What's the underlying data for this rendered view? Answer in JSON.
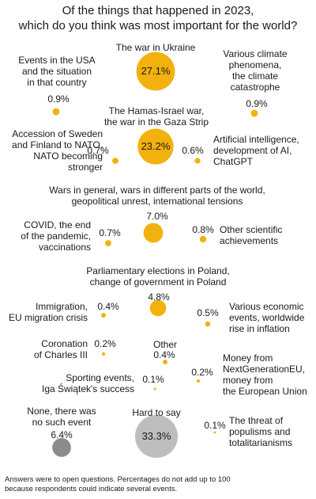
{
  "chart_data": {
    "type": "bubble",
    "title_lines": [
      "Of the things that happened in 2023,",
      "which do you think was most important for the world?"
    ],
    "unit": "%",
    "items": [
      {
        "id": "war-ukraine",
        "label_lines": [
          "The war in Ukraine"
        ],
        "value": 27.1,
        "value_text": "27.1%",
        "color": "#F2B10C",
        "align": "center"
      },
      {
        "id": "events-usa",
        "label_lines": [
          "Events in the USA",
          "and the situation",
          "in that country"
        ],
        "value": 0.9,
        "value_text": "0.9%",
        "color": "#F2B10C",
        "align": "center"
      },
      {
        "id": "climate",
        "label_lines": [
          "Various climate",
          "phenomena,",
          "the climate",
          "catastrophe"
        ],
        "value": 0.9,
        "value_text": "0.9%",
        "color": "#F2B10C",
        "align": "center"
      },
      {
        "id": "hamas-israel",
        "label_lines": [
          "The Hamas-Israel war,",
          "the war in the Gaza Strip"
        ],
        "value": 23.2,
        "value_text": "23.2%",
        "color": "#F2B10C",
        "align": "center"
      },
      {
        "id": "nato",
        "label_lines": [
          "Accession of Sweden",
          "and Finland to NATO,",
          "NATO becoming",
          "stronger"
        ],
        "value": 0.7,
        "value_text": "0.7%",
        "color": "#F2B10C",
        "align": "right"
      },
      {
        "id": "ai",
        "label_lines": [
          "Artificial intelligence,",
          "development of AI,",
          "ChatGPT"
        ],
        "value": 0.6,
        "value_text": "0.6%",
        "color": "#F2B10C",
        "align": "left"
      },
      {
        "id": "wars-general",
        "label_lines": [
          "Wars in general, wars in different parts of the world,",
          "geopolitical unrest, international tensions"
        ],
        "value": 7.0,
        "value_text": "7.0%",
        "color": "#F2B10C",
        "align": "center"
      },
      {
        "id": "covid",
        "label_lines": [
          "COVID, the end",
          "of the pandemic,",
          "vaccinations"
        ],
        "value": 0.7,
        "value_text": "0.7%",
        "color": "#F2B10C",
        "align": "right"
      },
      {
        "id": "scientific",
        "label_lines": [
          "Other scientific",
          "achievements"
        ],
        "value": 0.8,
        "value_text": "0.8%",
        "color": "#F2B10C",
        "align": "left"
      },
      {
        "id": "elections-poland",
        "label_lines": [
          "Parliamentary elections in Poland,",
          "change of government in Poland"
        ],
        "value": 4.8,
        "value_text": "4.8%",
        "color": "#F2B10C",
        "align": "center"
      },
      {
        "id": "immigration",
        "label_lines": [
          "Immigration,",
          "EU migration crisis"
        ],
        "value": 0.4,
        "value_text": "0.4%",
        "color": "#F2B10C",
        "align": "right"
      },
      {
        "id": "economic",
        "label_lines": [
          "Various economic",
          "events, worldwide",
          "rise in inflation"
        ],
        "value": 0.5,
        "value_text": "0.5%",
        "color": "#F2B10C",
        "align": "left"
      },
      {
        "id": "coronation",
        "label_lines": [
          "Coronation",
          "of Charles III"
        ],
        "value": 0.2,
        "value_text": "0.2%",
        "color": "#F2B10C",
        "align": "right"
      },
      {
        "id": "other",
        "label_lines": [
          "Other"
        ],
        "value": 0.4,
        "value_text": "0.4%",
        "color": "#F2B10C",
        "align": "center"
      },
      {
        "id": "next-gen-eu",
        "label_lines": [
          "Money from",
          "NextGenerationEU,",
          "money from",
          "the European Union"
        ],
        "value": 0.2,
        "value_text": "0.2%",
        "color": "#F2B10C",
        "align": "left"
      },
      {
        "id": "sporting",
        "label_lines": [
          "Sporting events,",
          "Iga Świątek's success"
        ],
        "value": 0.1,
        "value_text": "0.1%",
        "color": "#F2B10C",
        "align": "right"
      },
      {
        "id": "none",
        "label_lines": [
          "None, there was",
          "no such event"
        ],
        "value": 6.4,
        "value_text": "6.4%",
        "color": "#8C8C8C",
        "align": "center"
      },
      {
        "id": "hard-to-say",
        "label_lines": [
          "Hard to say"
        ],
        "value": 33.3,
        "value_text": "33.3%",
        "color": "#BDBDBD",
        "align": "center"
      },
      {
        "id": "populisms",
        "label_lines": [
          "The threat of",
          "populisms and",
          "totalitarianisms"
        ],
        "value": 0.1,
        "value_text": "0.1%",
        "color": "#F2B10C",
        "align": "left"
      }
    ]
  },
  "footnote_lines": [
    "Answers were to open questions. Percentages do not add up to 100",
    "because respondents could indicate several events."
  ]
}
